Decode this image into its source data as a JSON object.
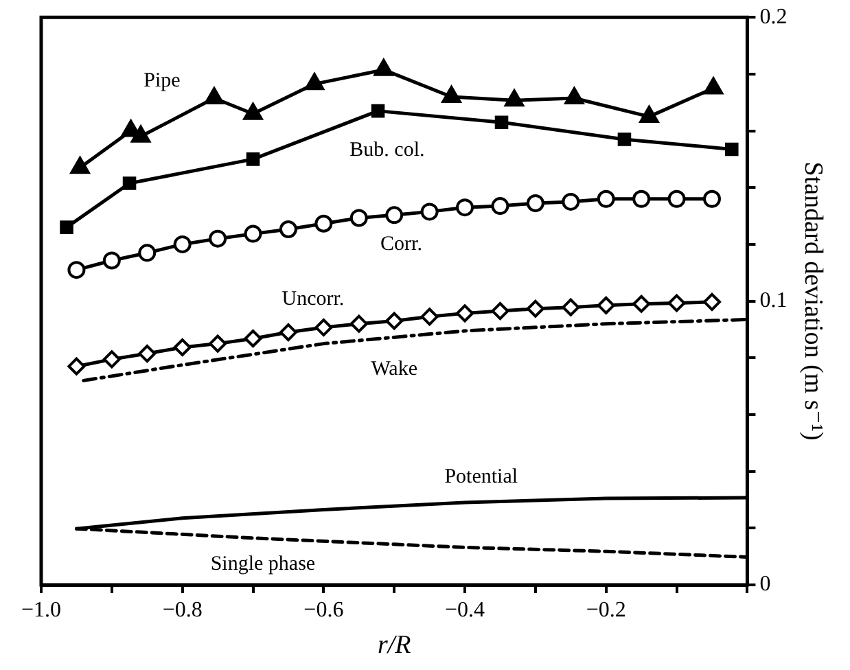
{
  "chart_data": {
    "type": "line",
    "xlabel": "r/R",
    "ylabel": "Standard deviation (m s⁻¹)",
    "xlim": [
      -1.0,
      0
    ],
    "ylim": [
      0,
      0.2
    ],
    "xticks": [
      {
        "value": -1.0,
        "label": "−1.0"
      },
      {
        "value": -0.9,
        "label": null
      },
      {
        "value": -0.8,
        "label": "−0.8"
      },
      {
        "value": -0.7,
        "label": null
      },
      {
        "value": -0.6,
        "label": "−0.6"
      },
      {
        "value": -0.5,
        "label": null
      },
      {
        "value": -0.4,
        "label": "−0.4"
      },
      {
        "value": -0.3,
        "label": null
      },
      {
        "value": -0.2,
        "label": "−0.2"
      },
      {
        "value": -0.1,
        "label": null
      },
      {
        "value": 0,
        "label": null
      }
    ],
    "yticks": [
      0,
      {
        "value": 0.02,
        "label": null
      },
      {
        "value": 0.04,
        "label": null
      },
      {
        "value": 0.06,
        "label": null
      },
      {
        "value": 0.08,
        "label": null
      },
      0.1,
      {
        "value": 0.12,
        "label": null
      },
      {
        "value": 0.14,
        "label": null
      },
      {
        "value": 0.16,
        "label": null
      },
      {
        "value": 0.18,
        "label": null
      },
      0.2
    ],
    "grid": false,
    "legend": false,
    "series": [
      {
        "name": "Pipe",
        "color": "#000000",
        "marker": "triangle",
        "line_style": "solid",
        "x": [
          -0.945,
          -0.873,
          -0.859,
          -0.755,
          -0.7,
          -0.613,
          -0.515,
          -0.419,
          -0.33,
          -0.245,
          -0.139,
          -0.048
        ],
        "values": [
          0.147,
          0.16,
          0.158,
          0.1715,
          0.166,
          0.1765,
          0.1815,
          0.172,
          0.1707,
          0.1715,
          0.165,
          0.175
        ]
      },
      {
        "name": "Bub. col.",
        "color": "#000000",
        "marker": "square",
        "line_style": "solid",
        "x": [
          -0.964,
          -0.875,
          -0.7,
          -0.523,
          -0.348,
          -0.174,
          -0.022
        ],
        "values": [
          0.126,
          0.1415,
          0.15,
          0.167,
          0.163,
          0.157,
          0.1535
        ]
      },
      {
        "name": "Corr.",
        "color": "#000000",
        "marker": "circle",
        "line_style": "solid",
        "x": [
          -0.95,
          -0.9,
          -0.85,
          -0.8,
          -0.75,
          -0.7,
          -0.65,
          -0.6,
          -0.55,
          -0.5,
          -0.45,
          -0.4,
          -0.35,
          -0.3,
          -0.25,
          -0.2,
          -0.15,
          -0.1,
          -0.05
        ],
        "values": [
          0.111,
          0.1143,
          0.117,
          0.12,
          0.122,
          0.1237,
          0.1253,
          0.1273,
          0.1293,
          0.1303,
          0.1315,
          0.133,
          0.1335,
          0.1345,
          0.135,
          0.136,
          0.136,
          0.136,
          0.136
        ]
      },
      {
        "name": "Uncorr.",
        "color": "#000000",
        "marker": "diamond",
        "line_style": "solid",
        "x": [
          -0.95,
          -0.9,
          -0.85,
          -0.8,
          -0.75,
          -0.7,
          -0.65,
          -0.6,
          -0.55,
          -0.5,
          -0.45,
          -0.4,
          -0.35,
          -0.3,
          -0.25,
          -0.2,
          -0.15,
          -0.1,
          -0.05
        ],
        "values": [
          0.077,
          0.0795,
          0.0815,
          0.0837,
          0.085,
          0.0868,
          0.089,
          0.0907,
          0.092,
          0.093,
          0.0945,
          0.0957,
          0.0965,
          0.0973,
          0.0978,
          0.0985,
          0.099,
          0.0993,
          0.0997
        ]
      },
      {
        "name": "Wake",
        "color": "#000000",
        "marker": "none",
        "line_style": "dashdot",
        "x": [
          -0.94,
          -0.8,
          -0.6,
          -0.4,
          -0.2,
          0
        ],
        "values": [
          0.072,
          0.0775,
          0.085,
          0.0895,
          0.092,
          0.0935
        ]
      },
      {
        "name": "Potential",
        "color": "#000000",
        "marker": "none",
        "line_style": "solid",
        "x": [
          -0.95,
          -0.8,
          -0.6,
          -0.4,
          -0.2,
          0
        ],
        "values": [
          0.0198,
          0.0235,
          0.0265,
          0.029,
          0.0305,
          0.0307
        ]
      },
      {
        "name": "Single phase",
        "color": "#000000",
        "marker": "none",
        "line_style": "dashed",
        "x": [
          -0.95,
          -0.7,
          -0.4,
          -0.2,
          0
        ],
        "values": [
          0.0198,
          0.0165,
          0.0132,
          0.0118,
          0.0098
        ]
      }
    ]
  }
}
